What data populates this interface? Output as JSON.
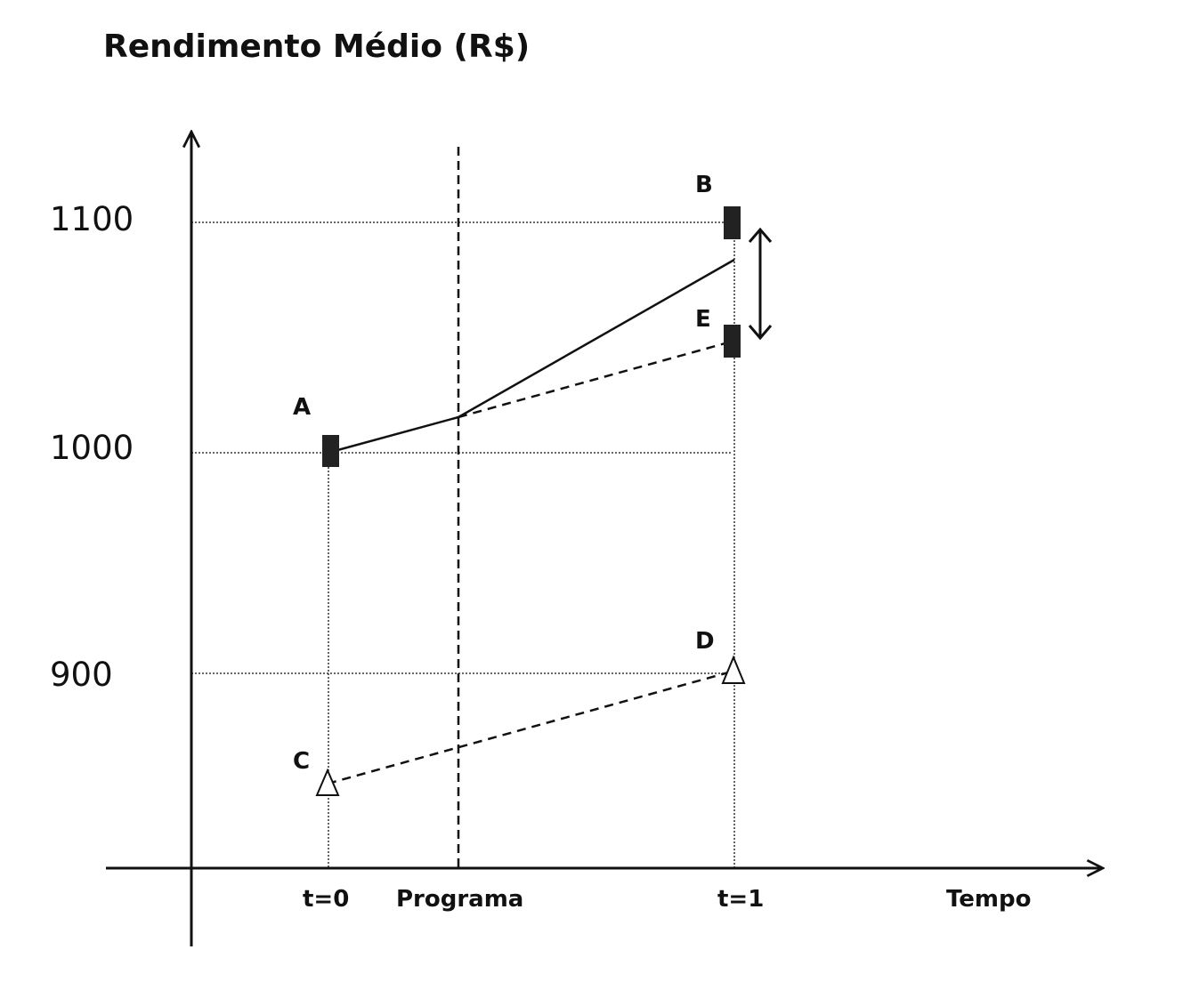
{
  "title": "Rendimento Médio (R$)",
  "y_ticks": [
    "1100",
    "1000",
    "900"
  ],
  "x_labels": [
    "t=0",
    "Programa",
    "t=1",
    "Tempo"
  ],
  "points": [
    {
      "label": "A",
      "time": "t=0",
      "value": 1000,
      "marker": "filled-rect"
    },
    {
      "label": "B",
      "time": "t=1",
      "value": 1100,
      "marker": "filled-rect"
    },
    {
      "label": "E",
      "time": "t=1",
      "value": 1050,
      "marker": "filled-rect"
    },
    {
      "label": "C",
      "time": "t=0",
      "value": 850,
      "marker": "open-triangle"
    },
    {
      "label": "D",
      "time": "t=1",
      "value": 900,
      "marker": "open-triangle"
    }
  ],
  "colors": {
    "ink": "#111111",
    "marker_fill": "#222222"
  }
}
